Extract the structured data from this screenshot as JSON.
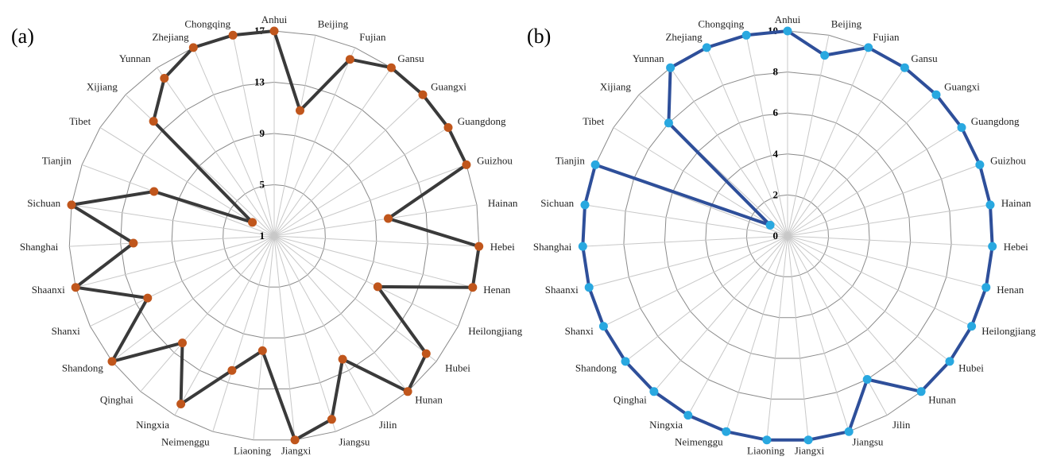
{
  "chart_data": [
    {
      "type": "radar",
      "panel_label": "(a)",
      "categories": [
        "Anhui",
        "Beijing",
        "Fujian",
        "Gansu",
        "Guangxi",
        "Guangdong",
        "Guizhou",
        "Hainan",
        "Hebei",
        "Henan",
        "Heilongjiang",
        "Hubei",
        "Hunan",
        "Jilin",
        "Jiangsu",
        "Jiangxi",
        "Liaoning",
        "Neimenggu",
        "Ningxia",
        "Qinghai",
        "Shandong",
        "Shanxi",
        "Shaanxi",
        "Shanghai",
        "Sichuan",
        "Tianjin",
        "Tibet",
        "Xijiang",
        "Yunnan",
        "Zhejiang",
        "Chongqing"
      ],
      "tick_labels": [
        "1",
        "5",
        "9",
        "13",
        "17"
      ],
      "rlim": [
        1,
        17
      ],
      "grid": true,
      "series": [
        {
          "line_color": "#3a3a3a",
          "marker_color": "#c0561c",
          "values": [
            17,
            11,
            16,
            17,
            17,
            17,
            17,
            10,
            17,
            17,
            10,
            16,
            17,
            12,
            16,
            17,
            10,
            12,
            16,
            12,
            17,
            12,
            17,
            12,
            17,
            11,
            3,
            14,
            16,
            17,
            17
          ]
        }
      ]
    },
    {
      "type": "radar",
      "panel_label": "(b)",
      "categories": [
        "Anhui",
        "Beijing",
        "Fujian",
        "Gansu",
        "Guangxi",
        "Guangdong",
        "Guizhou",
        "Hainan",
        "Hebei",
        "Henan",
        "Heilongjiang",
        "Hubei",
        "Hunan",
        "Jilin",
        "Jiangsu",
        "Jiangxi",
        "Liaoning",
        "Neimenggu",
        "Ningxia",
        "Qinghai",
        "Shandong",
        "Shanxi",
        "Shaanxi",
        "Shanghai",
        "Sichuan",
        "Tianjin",
        "Tibet",
        "Xijiang",
        "Yunnan",
        "Zhejiang",
        "Chongqing"
      ],
      "tick_labels": [
        "0",
        "2",
        "4",
        "6",
        "8",
        "10"
      ],
      "rlim": [
        0,
        10
      ],
      "grid": true,
      "series": [
        {
          "line_color": "#2e4f9a",
          "marker_color": "#29a8e0",
          "values": [
            10,
            9,
            10,
            10,
            10,
            10,
            10,
            10,
            10,
            10,
            10,
            10,
            10,
            8,
            10,
            10,
            10,
            10,
            10,
            10,
            10,
            10,
            10,
            10,
            10,
            10,
            1,
            8,
            10,
            10,
            10
          ]
        }
      ]
    }
  ]
}
